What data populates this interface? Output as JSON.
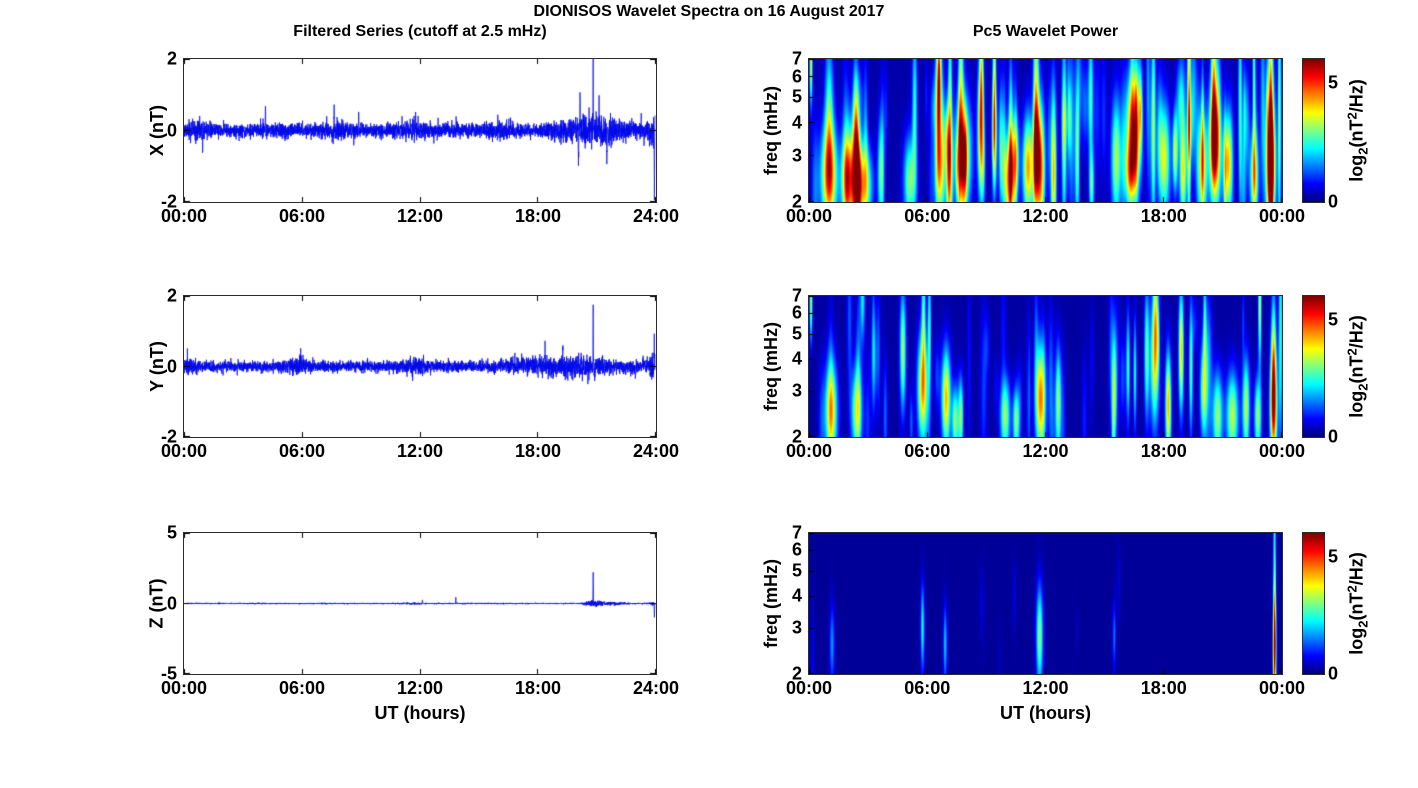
{
  "figure": {
    "title": "DIONISOS Wavelet Spectra on 16 August 2017",
    "left_title": "Filtered Series (cutoff at 2.5 mHz)",
    "right_title": "Pc5 Wavelet Power",
    "xlabel": "UT (hours)",
    "colorbar_label": {
      "text": "log2(nT2/Hz)",
      "pre": "log",
      "sub": "2",
      "mid": "(nT",
      "sup": "2",
      "post": "/Hz)"
    },
    "accent_line_color": "#0008e8",
    "heatmap_background_color": "#000080"
  },
  "chart_data": [
    {
      "kind": "line",
      "component": "X",
      "ylabel": "X (nT)",
      "ylim": [
        -2,
        2
      ],
      "yticks": [
        2,
        0,
        -2
      ],
      "xlim_hours": [
        0,
        24
      ],
      "xticklabels": [
        "00:00",
        "06:00",
        "12:00",
        "18:00",
        "24:00"
      ],
      "line_color": "#0008e8",
      "noise_sigma": 0.1,
      "seed": 3,
      "noise_bursts": [
        [
          20.9,
          1.2,
          1.3
        ],
        [
          0.9,
          0.3,
          0.8
        ],
        [
          7.9,
          0.5,
          0.4
        ],
        [
          11.8,
          0.4,
          0.4
        ],
        [
          16.2,
          0.5,
          0.3
        ],
        [
          23.9,
          0.15,
          1.5
        ]
      ],
      "spikes": [
        [
          0.95,
          -0.5
        ],
        [
          4.15,
          0.75
        ],
        [
          7.65,
          0.6
        ],
        [
          8.9,
          0.6
        ],
        [
          11.8,
          0.5
        ],
        [
          20.1,
          -1.0
        ],
        [
          20.18,
          0.9
        ],
        [
          20.85,
          1.7
        ],
        [
          21.15,
          0.85
        ],
        [
          21.55,
          -0.8
        ],
        [
          23.3,
          0.6
        ],
        [
          23.97,
          -1.7
        ]
      ]
    },
    {
      "kind": "line",
      "component": "Y",
      "ylabel": "Y (nT)",
      "ylim": [
        -2,
        2
      ],
      "yticks": [
        2,
        0,
        -2
      ],
      "xlim_hours": [
        0,
        24
      ],
      "xticklabels": [
        "00:00",
        "06:00",
        "12:00",
        "18:00",
        "24:00"
      ],
      "line_color": "#0008e8",
      "noise_sigma": 0.08,
      "seed": 5,
      "noise_bursts": [
        [
          0.2,
          0.2,
          0.8
        ],
        [
          5.7,
          0.4,
          0.8
        ],
        [
          11.75,
          0.35,
          0.9
        ],
        [
          17.5,
          1.0,
          0.5
        ],
        [
          19.5,
          1.0,
          0.6
        ],
        [
          21.0,
          1.5,
          0.5
        ],
        [
          23.9,
          0.15,
          1.8
        ]
      ],
      "spikes": [
        [
          18.4,
          0.55
        ],
        [
          19.3,
          0.6
        ],
        [
          20.85,
          1.7
        ],
        [
          20.9,
          -0.35
        ],
        [
          23.0,
          -0.45
        ],
        [
          23.96,
          0.75
        ]
      ]
    },
    {
      "kind": "line",
      "component": "Z",
      "ylabel": "Z (nT)",
      "ylim": [
        -5,
        5
      ],
      "yticks": [
        5,
        0,
        -5
      ],
      "xlim_hours": [
        0,
        24
      ],
      "xticklabels": [
        "00:00",
        "06:00",
        "12:00",
        "18:00",
        "24:00"
      ],
      "line_color": "#0008e8",
      "noise_sigma": 0.022,
      "seed": 9,
      "noise_bursts": [
        [
          11.7,
          0.3,
          1.0
        ],
        [
          20.85,
          0.25,
          3.5
        ],
        [
          21.6,
          0.6,
          2.0
        ],
        [
          23.9,
          0.1,
          2.0
        ]
      ],
      "spikes": [
        [
          12.15,
          0.3
        ],
        [
          13.85,
          0.5
        ],
        [
          20.85,
          2.2
        ],
        [
          23.97,
          -1.0
        ]
      ]
    },
    {
      "kind": "heatmap",
      "component": "X",
      "ylabel": "freq (mHz)",
      "ylim_mhz": [
        2,
        7
      ],
      "yscale": "log",
      "yticks": [
        7,
        6,
        5,
        4,
        3,
        2
      ],
      "xlim_hours": [
        0,
        24
      ],
      "xticklabels": [
        "00:00",
        "06:00",
        "12:00",
        "18:00",
        "00:00"
      ],
      "clim": [
        0,
        6
      ],
      "colorbar_ticks": [
        0,
        5
      ],
      "background_level": 0.25,
      "blob_format": "[hour, freq_mHz, sigma_t_hours, sigma_f_log2, peak_log2_power]",
      "texture": {
        "count": 80,
        "seed": 7,
        "pmin": 0.5,
        "pmax": 1.6
      },
      "blobs": [
        [
          0.08,
          6.7,
          0.05,
          0.35,
          3.4
        ],
        [
          1.0,
          2.5,
          0.3,
          0.45,
          4.3
        ],
        [
          1.0,
          4.2,
          0.15,
          0.7,
          2.4
        ],
        [
          1.9,
          2.4,
          0.2,
          0.4,
          3.7
        ],
        [
          2.35,
          2.5,
          0.2,
          0.5,
          4.1
        ],
        [
          2.35,
          4.4,
          0.1,
          0.5,
          2.4
        ],
        [
          2.8,
          2.3,
          0.28,
          0.35,
          3.2
        ],
        [
          3.6,
          2.6,
          0.1,
          0.5,
          2.2
        ],
        [
          5.1,
          2.4,
          0.22,
          0.4,
          2.8
        ],
        [
          5.35,
          4.6,
          0.09,
          0.7,
          2.2
        ],
        [
          6.55,
          4.9,
          0.11,
          0.55,
          3.9
        ],
        [
          6.6,
          2.6,
          0.16,
          0.45,
          3.6
        ],
        [
          6.6,
          6.8,
          0.07,
          0.5,
          2.5
        ],
        [
          7.1,
          2.7,
          0.13,
          0.5,
          3.1
        ],
        [
          7.15,
          5.6,
          0.07,
          0.7,
          2.3
        ],
        [
          7.8,
          3.0,
          0.28,
          0.5,
          4.4
        ],
        [
          7.7,
          5.6,
          0.09,
          0.8,
          2.7
        ],
        [
          8.7,
          3.8,
          0.11,
          0.6,
          4.0
        ],
        [
          8.75,
          6.2,
          0.07,
          0.5,
          2.4
        ],
        [
          9.4,
          3.6,
          0.09,
          0.5,
          3.3
        ],
        [
          9.4,
          6.1,
          0.06,
          0.8,
          2.6
        ],
        [
          10.15,
          2.4,
          0.22,
          0.4,
          3.9
        ],
        [
          11.1,
          2.7,
          0.18,
          0.45,
          4.0
        ],
        [
          11.65,
          2.7,
          0.2,
          0.5,
          4.5
        ],
        [
          11.55,
          5.1,
          0.09,
          0.9,
          2.6
        ],
        [
          12.4,
          3.0,
          0.11,
          0.7,
          3.0
        ],
        [
          12.95,
          3.6,
          0.09,
          0.9,
          2.7
        ],
        [
          13.6,
          3.0,
          0.07,
          0.7,
          2.2
        ],
        [
          14.3,
          5.0,
          0.09,
          0.6,
          2.4
        ],
        [
          14.35,
          2.3,
          0.09,
          0.3,
          2.4
        ],
        [
          15.6,
          2.9,
          0.18,
          0.55,
          3.1
        ],
        [
          16.45,
          3.8,
          0.26,
          0.5,
          4.5
        ],
        [
          16.3,
          2.5,
          0.18,
          0.3,
          3.1
        ],
        [
          17.5,
          4.0,
          0.07,
          0.9,
          2.4
        ],
        [
          18.05,
          2.9,
          0.2,
          0.5,
          3.3
        ],
        [
          18.6,
          3.1,
          0.09,
          0.35,
          3.3
        ],
        [
          19.0,
          2.5,
          0.13,
          0.4,
          3.1
        ],
        [
          19.3,
          5.0,
          0.06,
          1.3,
          3.7
        ],
        [
          20.0,
          2.7,
          0.16,
          0.5,
          3.5
        ],
        [
          20.6,
          3.3,
          0.2,
          0.55,
          5.0
        ],
        [
          20.55,
          6.1,
          0.09,
          0.7,
          2.8
        ],
        [
          21.25,
          2.8,
          0.16,
          0.45,
          3.7
        ],
        [
          21.9,
          4.5,
          0.07,
          0.9,
          2.4
        ],
        [
          22.6,
          2.5,
          0.16,
          0.4,
          3.1
        ],
        [
          22.6,
          5.6,
          0.05,
          0.9,
          2.2
        ],
        [
          23.45,
          2.8,
          0.17,
          0.6,
          6.3
        ],
        [
          23.45,
          5.6,
          0.09,
          0.8,
          3.3
        ],
        [
          23.9,
          4.5,
          0.06,
          1.2,
          2.8
        ]
      ]
    },
    {
      "kind": "heatmap",
      "component": "Y",
      "ylabel": "freq (mHz)",
      "ylim_mhz": [
        2,
        7
      ],
      "yscale": "log",
      "yticks": [
        7,
        6,
        5,
        4,
        3,
        2
      ],
      "xlim_hours": [
        0,
        24
      ],
      "xticklabels": [
        "00:00",
        "06:00",
        "12:00",
        "18:00",
        "00:00"
      ],
      "clim": [
        0,
        6
      ],
      "colorbar_ticks": [
        0,
        5
      ],
      "background_level": 0.2,
      "blob_format": "[hour, freq_mHz, sigma_t_hours, sigma_f_log2, peak_log2_power]",
      "texture": {
        "count": 40,
        "seed": 11,
        "pmin": 0.4,
        "pmax": 1.2
      },
      "blobs": [
        [
          0.08,
          6.7,
          0.05,
          0.35,
          3.2
        ],
        [
          1.1,
          2.5,
          0.22,
          0.45,
          3.8
        ],
        [
          2.4,
          2.5,
          0.2,
          0.4,
          3.0
        ],
        [
          2.7,
          6.8,
          0.09,
          0.4,
          2.0
        ],
        [
          4.75,
          4.3,
          0.11,
          0.55,
          3.0
        ],
        [
          5.75,
          3.1,
          0.18,
          0.5,
          4.0
        ],
        [
          5.8,
          6.1,
          0.07,
          0.6,
          2.2
        ],
        [
          6.1,
          5.5,
          0.06,
          0.6,
          2.2
        ],
        [
          6.95,
          2.8,
          0.16,
          0.45,
          4.0
        ],
        [
          7.4,
          2.3,
          0.11,
          0.3,
          2.8
        ],
        [
          7.7,
          2.4,
          0.09,
          0.35,
          2.8
        ],
        [
          9.95,
          2.4,
          0.18,
          0.35,
          3.0
        ],
        [
          10.5,
          2.3,
          0.11,
          0.3,
          2.8
        ],
        [
          11.75,
          2.8,
          0.18,
          0.5,
          4.4
        ],
        [
          12.65,
          2.7,
          0.11,
          0.5,
          3.0
        ],
        [
          15.5,
          3.0,
          0.09,
          0.55,
          2.8
        ],
        [
          16.2,
          3.7,
          0.07,
          0.5,
          2.4
        ],
        [
          16.55,
          3.5,
          0.06,
          0.5,
          2.2
        ],
        [
          17.15,
          4.2,
          0.09,
          0.6,
          2.6
        ],
        [
          17.55,
          3.9,
          0.16,
          0.6,
          3.3
        ],
        [
          17.6,
          6.1,
          0.09,
          0.5,
          2.2
        ],
        [
          18.25,
          2.6,
          0.11,
          0.5,
          3.0
        ],
        [
          18.9,
          4.3,
          0.09,
          0.55,
          3.9
        ],
        [
          19.4,
          3.7,
          0.07,
          0.6,
          2.6
        ],
        [
          20.05,
          3.0,
          0.13,
          0.45,
          3.1
        ],
        [
          20.1,
          5.6,
          0.06,
          0.5,
          2.0
        ],
        [
          20.75,
          2.4,
          0.18,
          0.4,
          3.0
        ],
        [
          21.5,
          2.4,
          0.22,
          0.4,
          3.2
        ],
        [
          22.2,
          2.6,
          0.13,
          0.45,
          3.2
        ],
        [
          22.8,
          2.4,
          0.13,
          0.35,
          3.0
        ],
        [
          22.9,
          6.6,
          0.06,
          0.55,
          3.3
        ],
        [
          23.6,
          2.6,
          0.13,
          0.5,
          4.8
        ],
        [
          23.6,
          4.2,
          0.09,
          0.6,
          2.8
        ],
        [
          23.95,
          5.0,
          0.07,
          1.0,
          2.4
        ]
      ]
    },
    {
      "kind": "heatmap",
      "component": "Z",
      "ylabel": "freq (mHz)",
      "ylim_mhz": [
        2,
        7
      ],
      "yscale": "log",
      "yticks": [
        7,
        6,
        5,
        4,
        3,
        2
      ],
      "xlim_hours": [
        0,
        24
      ],
      "xticklabels": [
        "00:00",
        "06:00",
        "12:00",
        "18:00",
        "00:00"
      ],
      "clim": [
        0,
        6
      ],
      "colorbar_ticks": [
        0,
        5
      ],
      "background_level": 0.15,
      "blob_format": "[hour, freq_mHz, sigma_t_hours, sigma_f_log2, peak_log2_power]",
      "texture": {
        "count": 6,
        "seed": 13,
        "pmin": 0.2,
        "pmax": 0.5
      },
      "blobs": [
        [
          1.15,
          2.6,
          0.09,
          0.35,
          1.5
        ],
        [
          5.75,
          3.0,
          0.07,
          0.4,
          2.2
        ],
        [
          6.9,
          2.6,
          0.07,
          0.35,
          1.8
        ],
        [
          11.7,
          2.8,
          0.12,
          0.45,
          3.0
        ],
        [
          15.5,
          2.8,
          0.06,
          0.3,
          1.3
        ],
        [
          23.65,
          2.5,
          0.06,
          0.45,
          4.7
        ],
        [
          23.65,
          4.5,
          0.05,
          1.0,
          2.6
        ]
      ]
    }
  ]
}
